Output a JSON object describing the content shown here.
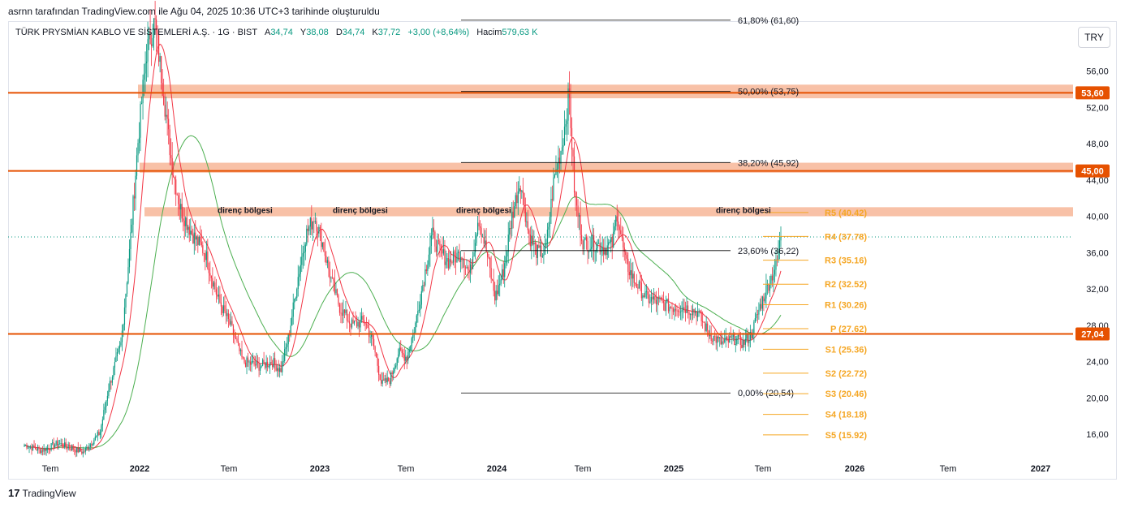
{
  "caption": "asrnn tarafından TradingView.com ile Ağu 04, 2025 10:36 UTC+3 tarihinde oluşturuldu",
  "legend": {
    "symbol": "TÜRK PRYSMİAN KABLO VE SİSTEMLERİ A.Ş. · 1G · BIST",
    "open_label": "A",
    "open": "34,74",
    "high_label": "Y",
    "high": "38,08",
    "low_label": "D",
    "low": "34,74",
    "close_label": "K",
    "close": "37,72",
    "change": "+3,00 (+8,64%)",
    "volume_label": "Hacim",
    "volume": "579,63 K"
  },
  "currency": "TRY",
  "brand": "TradingView",
  "colors": {
    "up": "#089981",
    "down": "#f23645",
    "ma_fast": "#f23645",
    "ma_slow": "#4caf50",
    "level_line": "#e65100",
    "zone": "#f7b698",
    "pivot": "#f5a623",
    "fib": "#000000"
  },
  "chart_data": {
    "type": "candlestick",
    "x_ticks": [
      "Tem",
      "2022",
      "Tem",
      "2023",
      "Tem",
      "2024",
      "Tem",
      "2025",
      "Tem",
      "2026",
      "Tem",
      "2027"
    ],
    "y_ticks": [
      "16,00",
      "20,00",
      "24,00",
      "28,00",
      "32,00",
      "36,00",
      "40,00",
      "44,00",
      "48,00",
      "52,00",
      "56,00"
    ],
    "y_tick_values": [
      16,
      20,
      24,
      28,
      32,
      36,
      40,
      44,
      48,
      52,
      56
    ],
    "ylim": [
      13.5,
      61.5
    ],
    "last_price": 37.72,
    "price_levels": [
      {
        "value": 53.6,
        "label": "53,60"
      },
      {
        "value": 45.0,
        "label": "45,00"
      },
      {
        "value": 27.04,
        "label": "27,04"
      }
    ],
    "zones": [
      {
        "low": 53.0,
        "high": 54.5
      },
      {
        "low": 44.8,
        "high": 45.9
      },
      {
        "low": 40.0,
        "high": 41.0
      }
    ],
    "zone_labels": [
      "direnç bölgesi",
      "direnç bölgesi",
      "direnç bölgesi",
      "direnç bölgesi"
    ],
    "fibonacci": [
      {
        "label": "61,80% (61,60)",
        "value": 61.6
      },
      {
        "label": "50,00% (53,75)",
        "value": 53.75
      },
      {
        "label": "38,20% (45,92)",
        "value": 45.92
      },
      {
        "label": "23,60% (36,22)",
        "value": 36.22
      },
      {
        "label": "0,00% (20,54)",
        "value": 20.54
      }
    ],
    "pivots": [
      {
        "name": "R5",
        "value": 40.42,
        "label": "R5 (40.42)"
      },
      {
        "name": "R4",
        "value": 37.78,
        "label": "R4 (37.78)"
      },
      {
        "name": "R3",
        "value": 35.16,
        "label": "R3 (35.16)"
      },
      {
        "name": "R2",
        "value": 32.52,
        "label": "R2 (32.52)"
      },
      {
        "name": "R1",
        "value": 30.26,
        "label": "R1 (30.26)"
      },
      {
        "name": "P",
        "value": 27.62,
        "label": "P (27.62)"
      },
      {
        "name": "S1",
        "value": 25.36,
        "label": "S1 (25.36)"
      },
      {
        "name": "S2",
        "value": 22.72,
        "label": "S2 (22.72)"
      },
      {
        "name": "S3",
        "value": 20.46,
        "label": "S3 (20.46)"
      },
      {
        "name": "S4",
        "value": 18.18,
        "label": "S4 (18.18)"
      },
      {
        "name": "S5",
        "value": 15.92,
        "label": "S5 (15.92)"
      }
    ],
    "price_path": [
      [
        0,
        14.8
      ],
      [
        0.02,
        14.2
      ],
      [
        0.04,
        15.0
      ],
      [
        0.07,
        14.0
      ],
      [
        0.09,
        16.2
      ],
      [
        0.1,
        21.0
      ],
      [
        0.115,
        26.0
      ],
      [
        0.125,
        36.0
      ],
      [
        0.135,
        48.0
      ],
      [
        0.145,
        58.0
      ],
      [
        0.155,
        61.5
      ],
      [
        0.165,
        54.0
      ],
      [
        0.175,
        46.0
      ],
      [
        0.185,
        41.0
      ],
      [
        0.2,
        38.0
      ],
      [
        0.215,
        36.0
      ],
      [
        0.23,
        31.0
      ],
      [
        0.245,
        28.0
      ],
      [
        0.26,
        24.0
      ],
      [
        0.28,
        23.5
      ],
      [
        0.295,
        24.0
      ],
      [
        0.305,
        23.0
      ],
      [
        0.315,
        27.0
      ],
      [
        0.325,
        33.0
      ],
      [
        0.335,
        38.0
      ],
      [
        0.345,
        40.0
      ],
      [
        0.355,
        37.0
      ],
      [
        0.365,
        33.0
      ],
      [
        0.375,
        30.0
      ],
      [
        0.39,
        28.0
      ],
      [
        0.405,
        28.5
      ],
      [
        0.415,
        26.0
      ],
      [
        0.425,
        21.5
      ],
      [
        0.435,
        22.0
      ],
      [
        0.445,
        25.0
      ],
      [
        0.455,
        24.5
      ],
      [
        0.465,
        28.0
      ],
      [
        0.475,
        33.0
      ],
      [
        0.485,
        38.0
      ],
      [
        0.495,
        36.0
      ],
      [
        0.505,
        35.0
      ],
      [
        0.52,
        36.0
      ],
      [
        0.53,
        33.5
      ],
      [
        0.54,
        40.0
      ],
      [
        0.55,
        36.0
      ],
      [
        0.56,
        31.0
      ],
      [
        0.57,
        34.0
      ],
      [
        0.58,
        40.0
      ],
      [
        0.59,
        44.0
      ],
      [
        0.6,
        38.0
      ],
      [
        0.61,
        36.0
      ],
      [
        0.62,
        36.0
      ],
      [
        0.63,
        44.0
      ],
      [
        0.64,
        48.0
      ],
      [
        0.648,
        53.5
      ],
      [
        0.655,
        42.0
      ],
      [
        0.665,
        37.0
      ],
      [
        0.68,
        37.0
      ],
      [
        0.69,
        36.5
      ],
      [
        0.7,
        37.0
      ],
      [
        0.705,
        40.5
      ],
      [
        0.715,
        35.0
      ],
      [
        0.725,
        33.0
      ],
      [
        0.74,
        31.0
      ],
      [
        0.755,
        30.5
      ],
      [
        0.77,
        30.0
      ],
      [
        0.785,
        30.0
      ],
      [
        0.8,
        29.5
      ],
      [
        0.815,
        27.0
      ],
      [
        0.83,
        26.0
      ],
      [
        0.845,
        26.5
      ],
      [
        0.855,
        26.0
      ],
      [
        0.865,
        27.0
      ],
      [
        0.875,
        30.0
      ],
      [
        0.885,
        32.5
      ],
      [
        0.895,
        34.74
      ],
      [
        0.9,
        37.72
      ]
    ]
  }
}
